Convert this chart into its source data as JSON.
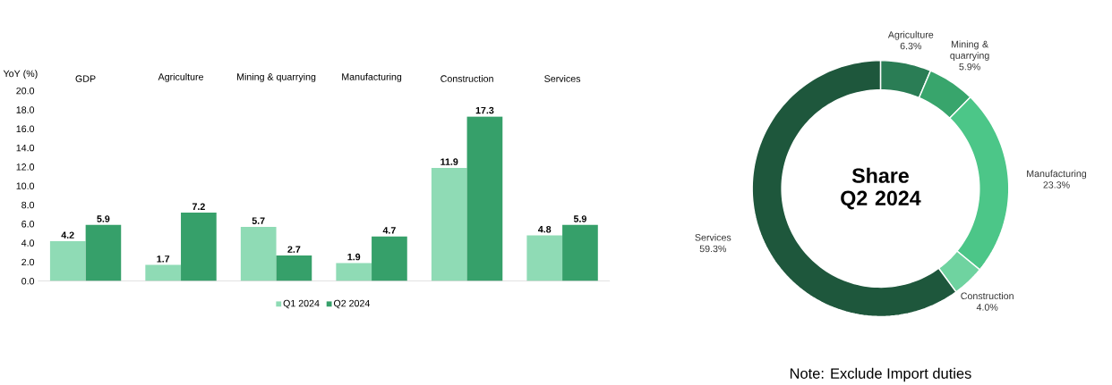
{
  "chart_data": [
    {
      "type": "bar",
      "ylabel": "YoY (%)",
      "categories": [
        "GDP",
        "Agriculture",
        "Mining & quarrying",
        "Manufacturing",
        "Construction",
        "Services"
      ],
      "series": [
        {
          "name": "Q1 2024",
          "color": "#8fdbb5",
          "values": [
            4.2,
            1.7,
            5.7,
            1.9,
            11.9,
            4.8
          ]
        },
        {
          "name": "Q2 2024",
          "color": "#36a06a",
          "values": [
            5.9,
            7.2,
            2.7,
            4.7,
            17.3,
            5.9
          ]
        }
      ],
      "ylim": [
        0,
        20
      ],
      "yticks": [
        {
          "value": 0,
          "label": "0.0"
        },
        {
          "value": 2,
          "label": "2.0"
        },
        {
          "value": 4,
          "label": "4.0"
        },
        {
          "value": 6,
          "label": "6.0"
        },
        {
          "value": 8,
          "label": "8.0"
        },
        {
          "value": 10,
          "label": "10.0"
        },
        {
          "value": 12,
          "label": "12.0"
        },
        {
          "value": 14,
          "label": "14.0"
        },
        {
          "value": 16,
          "label": "16.0"
        },
        {
          "value": 18,
          "label": "18.0"
        },
        {
          "value": 20,
          "label": "20.0"
        }
      ],
      "data_labels": true,
      "legend": "bottom"
    },
    {
      "type": "donut",
      "title": "Share Q2 2024",
      "categories": [
        "Agriculture",
        "Mining & quarrying",
        "Manufacturing",
        "Construction",
        "Services"
      ],
      "values": [
        6.3,
        5.9,
        23.3,
        4.0,
        59.3
      ],
      "colors": [
        "#2a7d55",
        "#38a56c",
        "#4cc688",
        "#6fd3a0",
        "#1e573c"
      ],
      "value_labels": [
        "6.3%",
        "5.9%",
        "23.3%",
        "4.0%",
        "59.3%"
      ],
      "annotations": [
        "Note: Exclude Import duties"
      ]
    }
  ]
}
